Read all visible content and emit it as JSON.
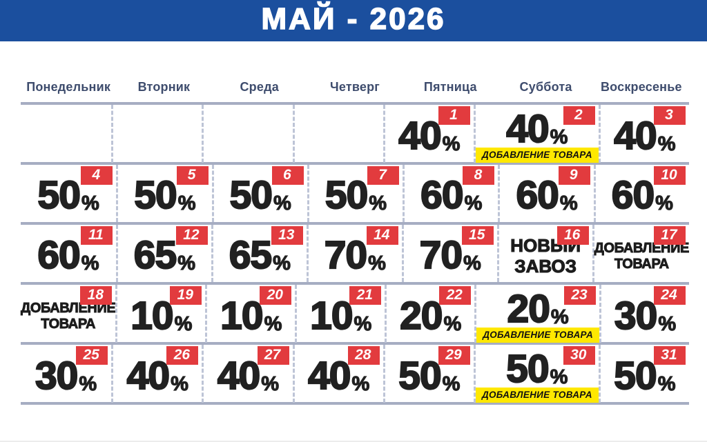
{
  "header": {
    "title": "МАЙ - 2026"
  },
  "weekdays": [
    "Понедельник",
    "Вторник",
    "Среда",
    "Четверг",
    "Пятница",
    "Суббота",
    "Воскресенье"
  ],
  "labels": {
    "product_addition_tag": "ДОБАВЛЕНИЕ ТОВАРА"
  },
  "calendar": {
    "weeks": [
      [
        null,
        null,
        null,
        null,
        {
          "day": 1,
          "percent": "40"
        },
        {
          "day": 2,
          "percent": "40",
          "tag": "ДОБАВЛЕНИЕ ТОВАРА"
        },
        {
          "day": 3,
          "percent": "40"
        }
      ],
      [
        {
          "day": 4,
          "percent": "50"
        },
        {
          "day": 5,
          "percent": "50"
        },
        {
          "day": 6,
          "percent": "50"
        },
        {
          "day": 7,
          "percent": "50"
        },
        {
          "day": 8,
          "percent": "60"
        },
        {
          "day": 9,
          "percent": "60"
        },
        {
          "day": 10,
          "percent": "60"
        }
      ],
      [
        {
          "day": 11,
          "percent": "60"
        },
        {
          "day": 12,
          "percent": "65"
        },
        {
          "day": 13,
          "percent": "65"
        },
        {
          "day": 14,
          "percent": "70"
        },
        {
          "day": 15,
          "percent": "70"
        },
        {
          "day": 16,
          "label_lines": [
            "НОВЫЙ",
            "ЗАВОЗ"
          ],
          "label_size": "big"
        },
        {
          "day": 17,
          "label_lines": [
            "ДОБАВЛЕНИЕ",
            "ТОВАРА"
          ],
          "label_size": "small"
        }
      ],
      [
        {
          "day": 18,
          "label_lines": [
            "ДОБАВЛЕНИЕ",
            "ТОВАРА"
          ],
          "label_size": "small"
        },
        {
          "day": 19,
          "percent": "10"
        },
        {
          "day": 20,
          "percent": "10"
        },
        {
          "day": 21,
          "percent": "10"
        },
        {
          "day": 22,
          "percent": "20"
        },
        {
          "day": 23,
          "percent": "20",
          "tag": "ДОБАВЛЕНИЕ ТОВАРА"
        },
        {
          "day": 24,
          "percent": "30"
        }
      ],
      [
        {
          "day": 25,
          "percent": "30"
        },
        {
          "day": 26,
          "percent": "40"
        },
        {
          "day": 27,
          "percent": "40"
        },
        {
          "day": 28,
          "percent": "40"
        },
        {
          "day": 29,
          "percent": "50"
        },
        {
          "day": 30,
          "percent": "50",
          "tag": "ДОБАВЛЕНИЕ ТОВАРА"
        },
        {
          "day": 31,
          "percent": "50"
        }
      ]
    ]
  },
  "colors": {
    "header_blue": "#1b4f9e",
    "badge_red": "#e23b3e",
    "tag_yellow": "#ffe800",
    "value_black": "#212121",
    "weekday_text": "#3e4c6d",
    "grid_line": "#a6adc2",
    "grid_dash": "#bdc4d6"
  }
}
